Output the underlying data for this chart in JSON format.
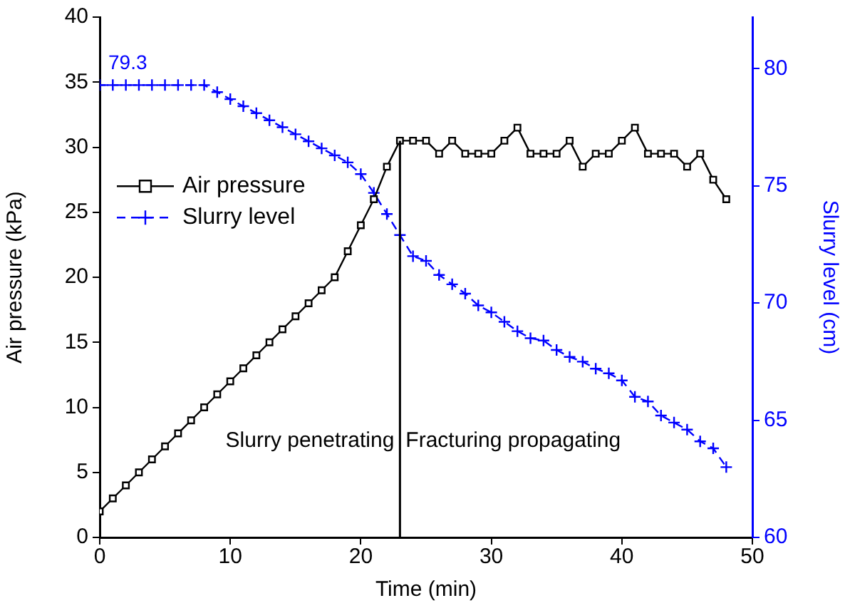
{
  "chart_data": {
    "type": "line",
    "xlabel": "Time (min)",
    "ylabel": "Air pressure (kPa)",
    "y2label": "Slurry level (cm)",
    "x": [
      0,
      1,
      2,
      3,
      4,
      5,
      6,
      7,
      8,
      9,
      10,
      11,
      12,
      13,
      14,
      15,
      16,
      17,
      18,
      19,
      20,
      21,
      22,
      23,
      24,
      25,
      26,
      27,
      28,
      29,
      30,
      31,
      32,
      33,
      34,
      35,
      36,
      37,
      38,
      39,
      40,
      41,
      42,
      43,
      44,
      45,
      46,
      47,
      48
    ],
    "series": [
      {
        "name": "Air pressure",
        "color": "#000000",
        "marker": "square",
        "line_style": "solid",
        "values": [
          2,
          3,
          4,
          5,
          6,
          7,
          8,
          9,
          10,
          11,
          12,
          13,
          14,
          15,
          16,
          17,
          18,
          19,
          20,
          22,
          24,
          26,
          28.5,
          30.5,
          30.5,
          30.5,
          29.5,
          30.5,
          29.5,
          29.5,
          29.5,
          30.5,
          31.5,
          29.5,
          29.5,
          29.5,
          30.5,
          28.5,
          29.5,
          29.5,
          30.5,
          31.5,
          29.5,
          29.5,
          29.5,
          28.5,
          29.5,
          27.5,
          26
        ]
      },
      {
        "name": "Slurry level",
        "color": "#0000ff",
        "marker": "cross",
        "line_style": "dashed",
        "axis": "y2",
        "values": [
          79.3,
          79.3,
          79.3,
          79.3,
          79.3,
          79.3,
          79.3,
          79.3,
          79.3,
          79.0,
          78.7,
          78.4,
          78.1,
          77.8,
          77.5,
          77.2,
          76.9,
          76.6,
          76.3,
          76.0,
          75.5,
          74.7,
          73.8,
          72.9,
          72.0,
          71.8,
          71.2,
          70.8,
          70.4,
          69.9,
          69.6,
          69.2,
          68.8,
          68.5,
          68.4,
          68.0,
          67.7,
          67.5,
          67.2,
          67.0,
          66.7,
          66.0,
          65.8,
          65.2,
          64.9,
          64.6,
          64.1,
          63.8,
          63.0
        ],
        "value_labels": [
          "79.3",
          null,
          null,
          null,
          null,
          null,
          null,
          null,
          null,
          null,
          null,
          null,
          null,
          null,
          null,
          null,
          null,
          null,
          null,
          null,
          null,
          null,
          null,
          null,
          null,
          null,
          null,
          null,
          null,
          null,
          null,
          null,
          null,
          null,
          null,
          null,
          null,
          null,
          null,
          null,
          null,
          null,
          null,
          null,
          null,
          null,
          null,
          null,
          null
        ]
      }
    ],
    "xlim": [
      0,
      50
    ],
    "xticks": [
      0,
      10,
      20,
      30,
      40,
      50
    ],
    "ylim": [
      0,
      40
    ],
    "yticks": [
      0,
      5,
      10,
      15,
      20,
      25,
      30,
      35,
      40
    ],
    "y2lim": [
      60,
      82.2
    ],
    "y2ticks": [
      60,
      65,
      70,
      75,
      80
    ],
    "ref_lines": [
      {
        "axis": "x",
        "value": 23,
        "color": "#000000"
      }
    ],
    "annotations": [
      "Slurry penetrating",
      "Fracturing propagating"
    ],
    "legend": "left",
    "grid": false
  }
}
